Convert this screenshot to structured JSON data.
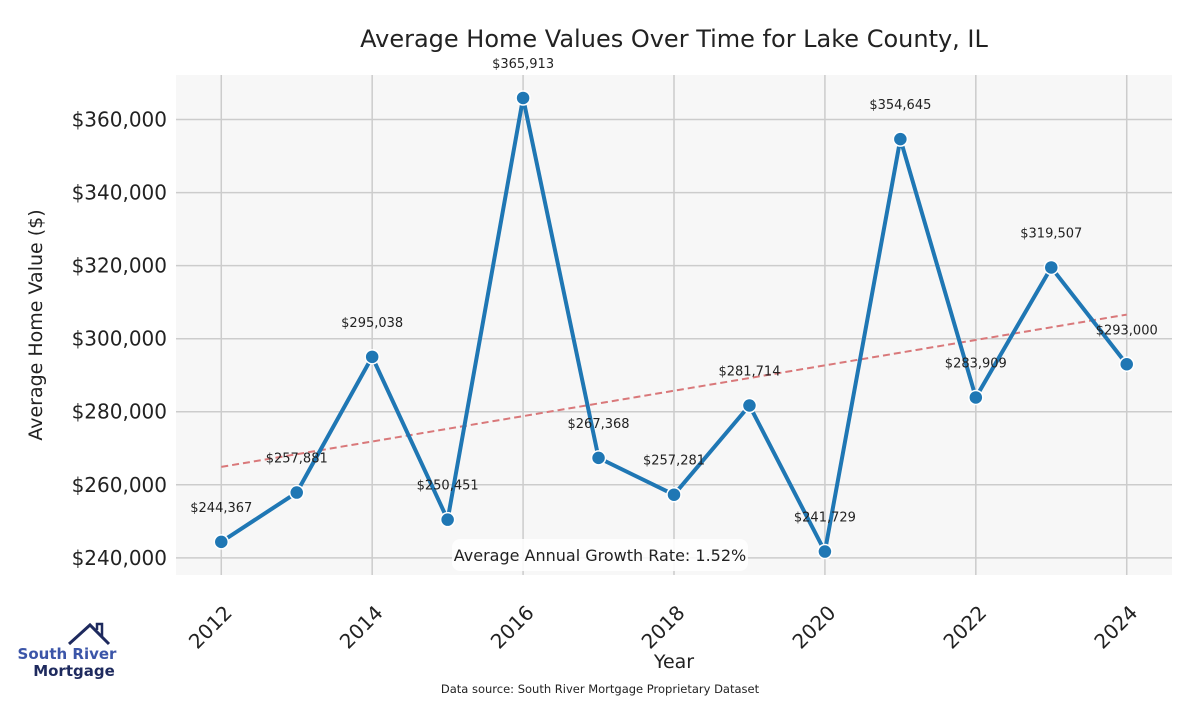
{
  "chart_data": {
    "type": "line",
    "title": "Average Home Values Over Time for Lake County, IL",
    "xlabel": "Year",
    "ylabel": "Average Home Value ($)",
    "x": [
      2012,
      2013,
      2014,
      2015,
      2016,
      2017,
      2018,
      2019,
      2020,
      2021,
      2022,
      2023,
      2024
    ],
    "series": [
      {
        "name": "Average Home Value",
        "values": [
          244367,
          257881,
          295038,
          250451,
          365913,
          267368,
          257281,
          281714,
          241729,
          354645,
          283909,
          319507,
          293000
        ],
        "color": "#1f77b4"
      }
    ],
    "data_labels": [
      "$244,367",
      "$257,881",
      "$295,038",
      "$250,451",
      "$365,913",
      "$267,368",
      "$257,281",
      "$281,714",
      "$241,729",
      "$354,645",
      "$283,909",
      "$319,507",
      "$293,000"
    ],
    "trend_line": {
      "start": [
        2012,
        264900
      ],
      "end": [
        2024,
        306600
      ],
      "color": "#d9787a",
      "style": "dashed"
    },
    "xticks": [
      2012,
      2014,
      2016,
      2018,
      2020,
      2022,
      2024
    ],
    "xtick_labels": [
      "2012",
      "2014",
      "2016",
      "2018",
      "2020",
      "2022",
      "2024"
    ],
    "yticks": [
      240000,
      260000,
      280000,
      300000,
      320000,
      340000,
      360000
    ],
    "ytick_labels": [
      "$240,000",
      "$260,000",
      "$280,000",
      "$300,000",
      "$320,000",
      "$340,000",
      "$360,000"
    ],
    "xlim": [
      2011.4,
      2024.6
    ],
    "ylim": [
      235300,
      372200
    ],
    "grid": true,
    "annotation": "Average Annual Growth Rate: 1.52%"
  },
  "footer": {
    "source": "Data source: South River Mortgage Proprietary Dataset",
    "logo_line1": "South River",
    "logo_line2": "Mortgage"
  }
}
